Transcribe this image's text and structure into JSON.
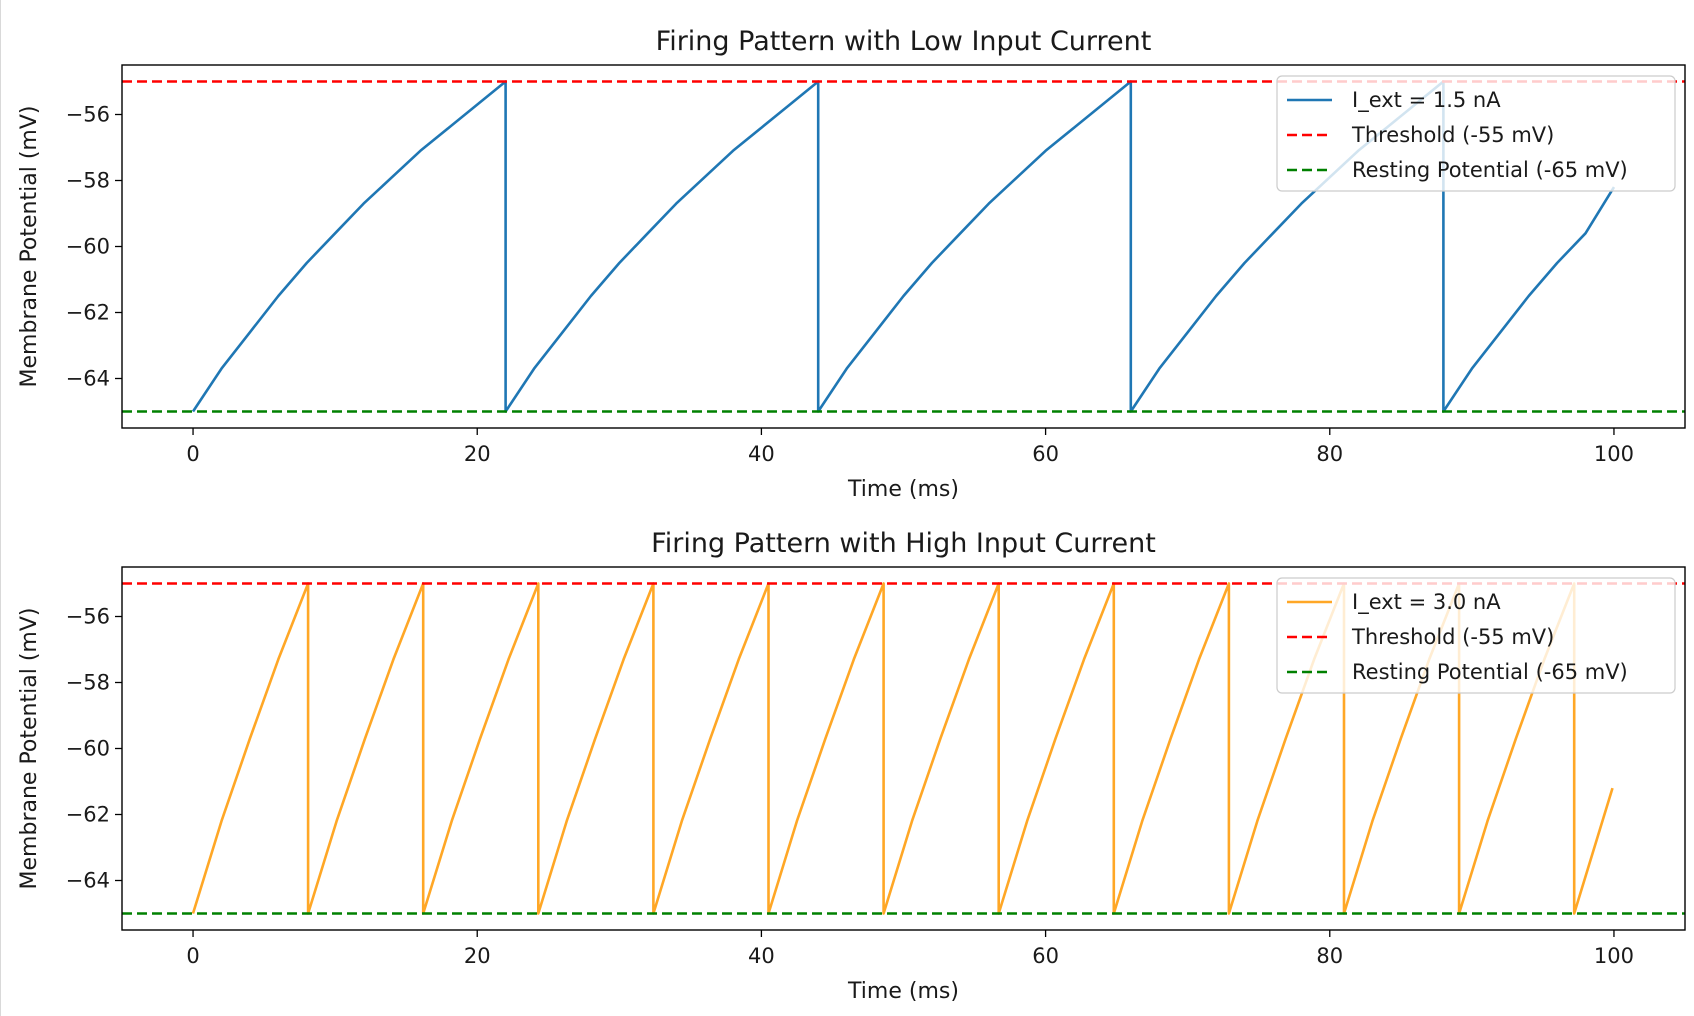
{
  "chart_data": [
    {
      "type": "line",
      "title": "Firing Pattern with Low Input Current",
      "xlabel": "Time (ms)",
      "ylabel": "Membrane Potential (mV)",
      "xlim": [
        -5,
        105
      ],
      "ylim": [
        -65.5,
        -54.5
      ],
      "xticks": [
        0,
        20,
        40,
        60,
        80,
        100
      ],
      "yticks": [
        -64,
        -62,
        -60,
        -58,
        -56
      ],
      "xtick_labels": [
        "0",
        "20",
        "40",
        "60",
        "80",
        "100"
      ],
      "ytick_labels": [
        "−64",
        "−62",
        "−60",
        "−58",
        "−56"
      ],
      "grid": false,
      "legend_position": "upper-right",
      "series": [
        {
          "name": "I_ext = 1.5 nA",
          "color": "#1f77b4",
          "style": "solid",
          "x": [
            0,
            2,
            4,
            6,
            8,
            10,
            12,
            14,
            16,
            18,
            20,
            22,
            22,
            24,
            26,
            28,
            30,
            32,
            34,
            36,
            38,
            40,
            42,
            44,
            44,
            46,
            48,
            50,
            52,
            54,
            56,
            58,
            60,
            62,
            64,
            66,
            66,
            68,
            70,
            72,
            74,
            76,
            78,
            80,
            82,
            84,
            86,
            88,
            88,
            90,
            92,
            94,
            96,
            98,
            100
          ],
          "y": [
            -65,
            -63.7,
            -62.6,
            -61.5,
            -60.5,
            -59.6,
            -58.7,
            -57.9,
            -57.1,
            -56.4,
            -55.7,
            -55.0,
            -65,
            -63.7,
            -62.6,
            -61.5,
            -60.5,
            -59.6,
            -58.7,
            -57.9,
            -57.1,
            -56.4,
            -55.7,
            -55.0,
            -65,
            -63.7,
            -62.6,
            -61.5,
            -60.5,
            -59.6,
            -58.7,
            -57.9,
            -57.1,
            -56.4,
            -55.7,
            -55.0,
            -65,
            -63.7,
            -62.6,
            -61.5,
            -60.5,
            -59.6,
            -58.7,
            -57.9,
            -57.1,
            -56.4,
            -55.7,
            -55.0,
            -65,
            -63.7,
            -62.6,
            -61.5,
            -60.5,
            -59.6,
            -58.2
          ]
        },
        {
          "name": "Threshold (-55 mV)",
          "color": "#ff0000",
          "style": "dashed",
          "y_constant": -55
        },
        {
          "name": "Resting Potential (-65 mV)",
          "color": "#008000",
          "style": "dashed",
          "y_constant": -65
        }
      ]
    },
    {
      "type": "line",
      "title": "Firing Pattern with High Input Current",
      "xlabel": "Time (ms)",
      "ylabel": "Membrane Potential (mV)",
      "xlim": [
        -5,
        105
      ],
      "ylim": [
        -65.5,
        -54.5
      ],
      "xticks": [
        0,
        20,
        40,
        60,
        80,
        100
      ],
      "yticks": [
        -64,
        -62,
        -60,
        -58,
        -56
      ],
      "xtick_labels": [
        "0",
        "20",
        "40",
        "60",
        "80",
        "100"
      ],
      "ytick_labels": [
        "−64",
        "−62",
        "−60",
        "−58",
        "−56"
      ],
      "grid": false,
      "legend_position": "upper-right",
      "series": [
        {
          "name": "I_ext = 3.0 nA",
          "color": "#ffa726",
          "style": "solid",
          "x": [
            0,
            2,
            4,
            6,
            8.1,
            8.1,
            10.1,
            12.1,
            14.1,
            16.2,
            16.2,
            18.2,
            20.2,
            22.2,
            24.3,
            24.3,
            26.3,
            28.3,
            30.3,
            32.4,
            32.4,
            34.4,
            36.4,
            38.4,
            40.5,
            40.5,
            42.5,
            44.5,
            46.5,
            48.6,
            48.6,
            50.6,
            52.6,
            54.6,
            56.7,
            56.7,
            58.7,
            60.7,
            62.7,
            64.8,
            64.8,
            66.8,
            68.8,
            70.8,
            72.9,
            72.9,
            74.9,
            76.9,
            78.9,
            81.0,
            81.0,
            83.0,
            85.0,
            87.0,
            89.1,
            89.1,
            91.1,
            93.1,
            95.1,
            97.2,
            97.2,
            99.9
          ],
          "y": [
            -65,
            -62.2,
            -59.7,
            -57.3,
            -55.0,
            -65,
            -62.2,
            -59.7,
            -57.3,
            -55.0,
            -65,
            -62.2,
            -59.7,
            -57.3,
            -55.0,
            -65,
            -62.2,
            -59.7,
            -57.3,
            -55.0,
            -65,
            -62.2,
            -59.7,
            -57.3,
            -55.0,
            -65,
            -62.2,
            -59.7,
            -57.3,
            -55.0,
            -65,
            -62.2,
            -59.7,
            -57.3,
            -55.0,
            -65,
            -62.2,
            -59.7,
            -57.3,
            -55.0,
            -65,
            -62.2,
            -59.7,
            -57.3,
            -55.0,
            -65,
            -62.2,
            -59.7,
            -57.3,
            -55.0,
            -65,
            -62.2,
            -59.7,
            -57.3,
            -55.0,
            -65,
            -62.2,
            -59.7,
            -57.3,
            -55.0,
            -65,
            -61.2
          ]
        },
        {
          "name": "Threshold (-55 mV)",
          "color": "#ff0000",
          "style": "dashed",
          "y_constant": -55
        },
        {
          "name": "Resting Potential (-65 mV)",
          "color": "#008000",
          "style": "dashed",
          "y_constant": -65
        }
      ]
    }
  ]
}
